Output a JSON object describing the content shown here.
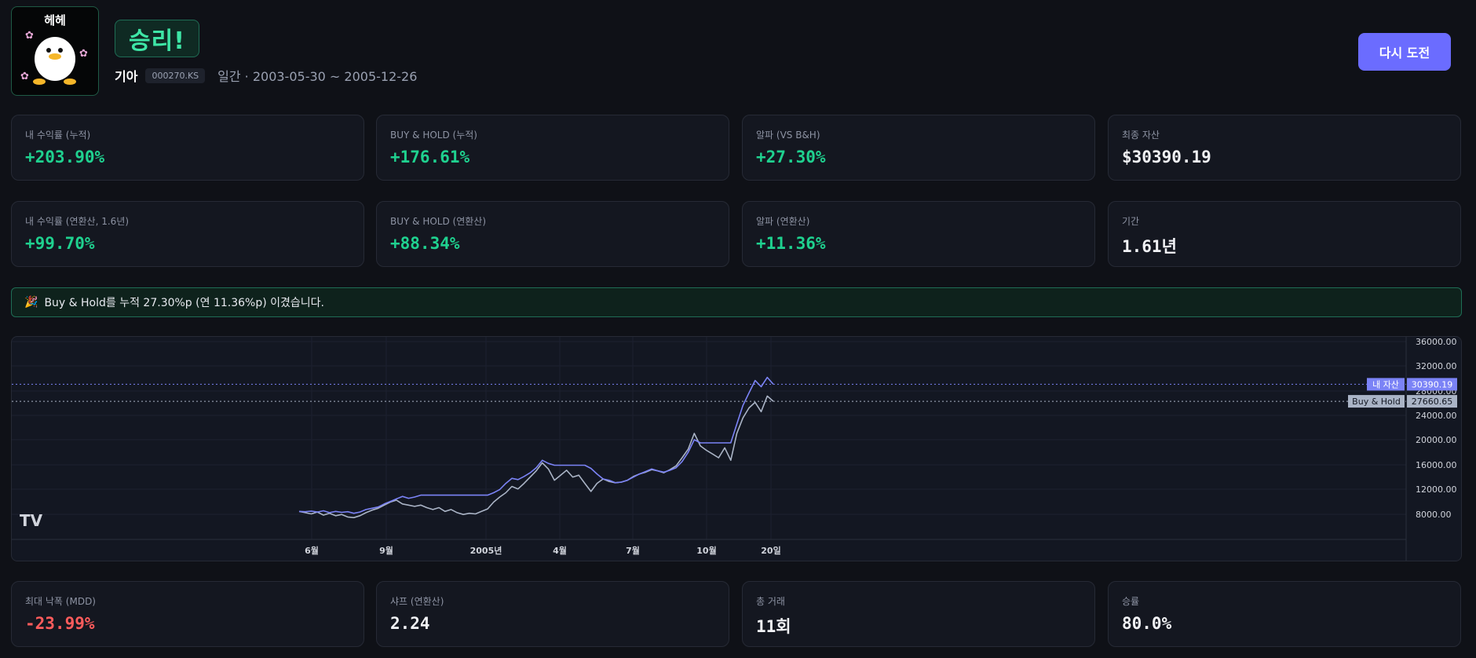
{
  "header": {
    "avatar_caption": "헤헤",
    "result": "승리!",
    "stock_name": "기아",
    "ticker": "000270.KS",
    "period": "일간 · 2003-05-30 ~ 2005-12-26",
    "retry_label": "다시 도전"
  },
  "stats_row1": [
    {
      "label": "내 수익률 (누적)",
      "value": "+203.90%",
      "tone": "pos"
    },
    {
      "label": "BUY & HOLD (누적)",
      "value": "+176.61%",
      "tone": "pos"
    },
    {
      "label": "알파 (VS B&H)",
      "value": "+27.30%",
      "tone": "pos"
    },
    {
      "label": "최종 자산",
      "value": "$30390.19",
      "tone": "neu"
    }
  ],
  "stats_row2": [
    {
      "label": "내 수익률 (연환산, 1.6년)",
      "value": "+99.70%",
      "tone": "pos"
    },
    {
      "label": "BUY & HOLD (연환산)",
      "value": "+88.34%",
      "tone": "pos"
    },
    {
      "label": "알파 (연환산)",
      "value": "+11.36%",
      "tone": "pos"
    },
    {
      "label": "기간",
      "value": "1.61년",
      "tone": "neu"
    }
  ],
  "banner": {
    "icon": "party-popper-icon",
    "text": "Buy & Hold를 누적 27.30%p (연 11.36%p) 이겼습니다."
  },
  "stats_row3": [
    {
      "label": "최대 낙폭 (MDD)",
      "value": "-23.99%",
      "tone": "neg"
    },
    {
      "label": "샤프 (연환산)",
      "value": "2.24",
      "tone": "neu"
    },
    {
      "label": "총 거래",
      "value": "11회",
      "tone": "neu"
    },
    {
      "label": "승률",
      "value": "80.0%",
      "tone": "neu"
    }
  ],
  "colors": {
    "my_asset": "#7b83f6",
    "buy_hold": "#aab4c6",
    "positive": "#1fd18f",
    "negative": "#ff5c5c",
    "accent": "#6b6cff"
  },
  "chart_data": {
    "type": "line",
    "logo": "tradingview-icon",
    "x_ticks": [
      "6월",
      "9월",
      "2005년",
      "4월",
      "7월",
      "10월",
      "20일"
    ],
    "y_ticks": [
      "8000.00",
      "12000.00",
      "16000.00",
      "20000.00",
      "24000.00",
      "28000.00",
      "32000.00",
      "36000.00"
    ],
    "ylim": [
      5500,
      38000
    ],
    "series": [
      {
        "name": "내 자산",
        "last_label": "30390.19",
        "color": "#7b83f6",
        "values": [
          10000,
          9950,
          10050,
          9900,
          10100,
          9800,
          10000,
          9850,
          9950,
          9700,
          9900,
          10300,
          10500,
          10700,
          11200,
          11600,
          12000,
          12400,
          12100,
          12300,
          12600,
          12600,
          12600,
          12600,
          12600,
          12600,
          12600,
          12600,
          12600,
          12600,
          12600,
          12600,
          13000,
          13500,
          14500,
          15300,
          15100,
          15600,
          16200,
          17000,
          18200,
          17700,
          17400,
          17400,
          17400,
          17400,
          17400,
          17400,
          16900,
          16000,
          15200,
          15000,
          14600,
          14700,
          15000,
          15500,
          16000,
          16400,
          16800,
          16500,
          16300,
          16600,
          17000,
          18000,
          19500,
          21500,
          21000,
          21000,
          21000,
          21000,
          21000,
          21000,
          24000,
          27000,
          29000,
          31000,
          30000,
          31500,
          30390
        ]
      },
      {
        "name": "Buy & Hold",
        "last_label": "27660.65",
        "color": "#aab4c6",
        "values": [
          10000,
          9800,
          9600,
          9900,
          9400,
          9700,
          9300,
          9500,
          9100,
          9000,
          9300,
          9800,
          10200,
          10500,
          11000,
          11500,
          11800,
          11200,
          11000,
          10800,
          11000,
          10600,
          10300,
          10600,
          10000,
          10300,
          9800,
          9500,
          9700,
          9600,
          10000,
          10400,
          11500,
          12300,
          13000,
          14000,
          13600,
          14500,
          15500,
          16500,
          17800,
          16800,
          15000,
          15800,
          16600,
          15500,
          15800,
          14500,
          13200,
          14500,
          15200,
          14800,
          14600,
          14700,
          15000,
          15600,
          16000,
          16300,
          16700,
          16500,
          16200,
          16700,
          17300,
          18600,
          20000,
          22500,
          20500,
          19800,
          19200,
          18600,
          20200,
          18200,
          22500,
          25000,
          26600,
          27500,
          26000,
          28500,
          27660
        ]
      }
    ]
  }
}
